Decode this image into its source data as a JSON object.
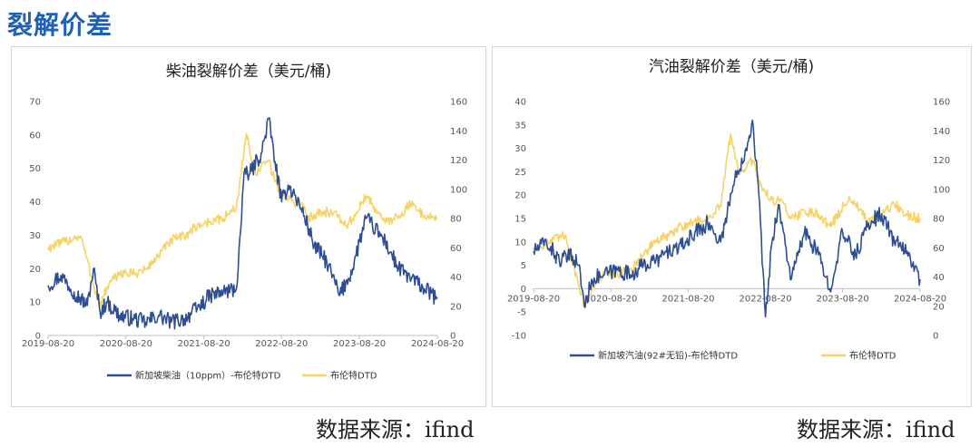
{
  "page": {
    "title": "裂解价差",
    "source_left": "数据来源：ifind",
    "source_right": "数据来源：ifind"
  },
  "colors": {
    "series_spread": "#2e4e93",
    "series_brent": "#f7d367",
    "title_blue": "#1f5fb4"
  },
  "chart_data": [
    {
      "type": "line",
      "title": "柴油裂解价差（美元/桶)",
      "x_tick_labels": [
        "2019-08-20",
        "2020-08-20",
        "2021-08-20",
        "2022-08-20",
        "2023-08-20",
        "2024-08-20"
      ],
      "y_left_ticks": [
        "0",
        "10",
        "20",
        "30",
        "40",
        "50",
        "60",
        "70"
      ],
      "y_right_ticks": [
        "0",
        "20",
        "40",
        "60",
        "80",
        "100",
        "120",
        "140",
        "160"
      ],
      "ylim_left": [
        0,
        70
      ],
      "ylim_right": [
        0,
        160
      ],
      "xlim": [
        "2019-08-20",
        "2024-08-20"
      ],
      "grid": false,
      "legend_position": "bottom",
      "series": [
        {
          "name": "新加坡柴油（10ppm）-布伦特DTD",
          "axis": "left",
          "color": "#2e4e93",
          "x": [
            "2019-08-20",
            "2019-10-20",
            "2019-12-20",
            "2020-02-20",
            "2020-03-20",
            "2020-04-20",
            "2020-05-20",
            "2020-07-20",
            "2020-09-20",
            "2020-11-20",
            "2021-01-20",
            "2021-03-20",
            "2021-05-20",
            "2021-07-20",
            "2021-09-20",
            "2021-11-20",
            "2022-01-20",
            "2022-03-01",
            "2022-03-20",
            "2022-05-20",
            "2022-06-20",
            "2022-07-20",
            "2022-08-20",
            "2022-09-20",
            "2022-10-20",
            "2022-11-20",
            "2022-12-20",
            "2023-01-20",
            "2023-03-20",
            "2023-05-20",
            "2023-07-20",
            "2023-08-20",
            "2023-09-20",
            "2023-10-20",
            "2023-12-20",
            "2024-02-20",
            "2024-04-20",
            "2024-06-20",
            "2024-08-20"
          ],
          "values": [
            15,
            18,
            13,
            9,
            20,
            7,
            10,
            6,
            5,
            4,
            6,
            4,
            5,
            8,
            12,
            13,
            14,
            50,
            48,
            55,
            65,
            52,
            40,
            45,
            42,
            38,
            33,
            27,
            22,
            12,
            20,
            28,
            35,
            33,
            28,
            20,
            17,
            14,
            11
          ]
        },
        {
          "name": "布伦特DTD",
          "axis": "right",
          "color": "#f7d367",
          "x": [
            "2019-08-20",
            "2019-10-20",
            "2019-12-20",
            "2020-01-20",
            "2020-03-20",
            "2020-04-20",
            "2020-05-20",
            "2020-07-20",
            "2020-09-20",
            "2020-11-20",
            "2021-01-20",
            "2021-03-20",
            "2021-05-20",
            "2021-07-20",
            "2021-09-20",
            "2021-11-20",
            "2022-01-20",
            "2022-03-08",
            "2022-04-20",
            "2022-06-20",
            "2022-07-20",
            "2022-08-20",
            "2022-09-20",
            "2022-11-20",
            "2022-12-20",
            "2023-02-20",
            "2023-04-20",
            "2023-06-20",
            "2023-07-20",
            "2023-09-20",
            "2023-10-20",
            "2023-12-20",
            "2024-02-20",
            "2024-04-20",
            "2024-06-20",
            "2024-08-20"
          ],
          "values": [
            60,
            63,
            67,
            68,
            35,
            20,
            32,
            43,
            42,
            45,
            55,
            65,
            68,
            75,
            78,
            80,
            88,
            138,
            110,
            120,
            105,
            98,
            93,
            90,
            80,
            85,
            84,
            75,
            80,
            95,
            90,
            77,
            82,
            90,
            82,
            80
          ]
        }
      ]
    },
    {
      "type": "line",
      "title": "汽油裂解价差（美元/桶)",
      "x_tick_labels": [
        "2019-08-20",
        "2020-08-20",
        "2021-08-20",
        "2022-08-20",
        "2023-08-20",
        "2024-08-20"
      ],
      "y_left_ticks": [
        "-10",
        "-5",
        "0",
        "5",
        "10",
        "15",
        "20",
        "25",
        "30",
        "35",
        "40"
      ],
      "y_right_ticks": [
        "0",
        "20",
        "40",
        "60",
        "80",
        "100",
        "120",
        "140",
        "160"
      ],
      "ylim_left": [
        -10,
        40
      ],
      "ylim_right": [
        0,
        160
      ],
      "xlim": [
        "2019-08-20",
        "2024-08-20"
      ],
      "grid": false,
      "legend_position": "bottom",
      "series": [
        {
          "name": "新加坡汽油(92#无铅)-布伦特DTD",
          "axis": "left",
          "color": "#2e4e93",
          "x": [
            "2019-08-20",
            "2019-10-20",
            "2019-12-20",
            "2020-02-20",
            "2020-03-20",
            "2020-04-20",
            "2020-05-20",
            "2020-07-20",
            "2020-09-20",
            "2020-11-20",
            "2021-01-20",
            "2021-03-20",
            "2021-05-20",
            "2021-07-20",
            "2021-09-20",
            "2021-11-20",
            "2022-01-20",
            "2022-03-20",
            "2022-05-20",
            "2022-06-20",
            "2022-07-20",
            "2022-08-20",
            "2022-09-20",
            "2022-10-20",
            "2022-12-20",
            "2023-02-20",
            "2023-04-20",
            "2023-06-20",
            "2023-08-20",
            "2023-10-20",
            "2023-12-20",
            "2024-02-20",
            "2024-04-20",
            "2024-06-20",
            "2024-08-20"
          ],
          "values": [
            8,
            10,
            6,
            7,
            5,
            -4,
            2,
            3,
            4,
            3,
            5,
            6,
            8,
            9,
            12,
            14,
            10,
            22,
            30,
            36,
            20,
            -6,
            10,
            18,
            2,
            12,
            8,
            0,
            12,
            7,
            14,
            16,
            10,
            8,
            2
          ]
        },
        {
          "name": "布伦特DTD",
          "axis": "right",
          "color": "#f7d367",
          "x": [
            "2019-08-20",
            "2019-10-20",
            "2019-12-20",
            "2020-01-20",
            "2020-03-20",
            "2020-04-20",
            "2020-05-20",
            "2020-07-20",
            "2020-09-20",
            "2020-11-20",
            "2021-01-20",
            "2021-03-20",
            "2021-05-20",
            "2021-07-20",
            "2021-09-20",
            "2021-11-20",
            "2022-01-20",
            "2022-03-08",
            "2022-04-20",
            "2022-06-20",
            "2022-07-20",
            "2022-08-20",
            "2022-09-20",
            "2022-11-20",
            "2022-12-20",
            "2023-02-20",
            "2023-04-20",
            "2023-06-20",
            "2023-07-20",
            "2023-09-20",
            "2023-10-20",
            "2023-12-20",
            "2024-02-20",
            "2024-04-20",
            "2024-06-20",
            "2024-08-20"
          ],
          "values": [
            60,
            63,
            67,
            68,
            35,
            20,
            32,
            43,
            42,
            45,
            55,
            65,
            68,
            75,
            78,
            80,
            88,
            138,
            110,
            120,
            105,
            98,
            93,
            90,
            80,
            85,
            84,
            75,
            80,
            95,
            90,
            77,
            82,
            90,
            82,
            80
          ]
        }
      ]
    }
  ]
}
